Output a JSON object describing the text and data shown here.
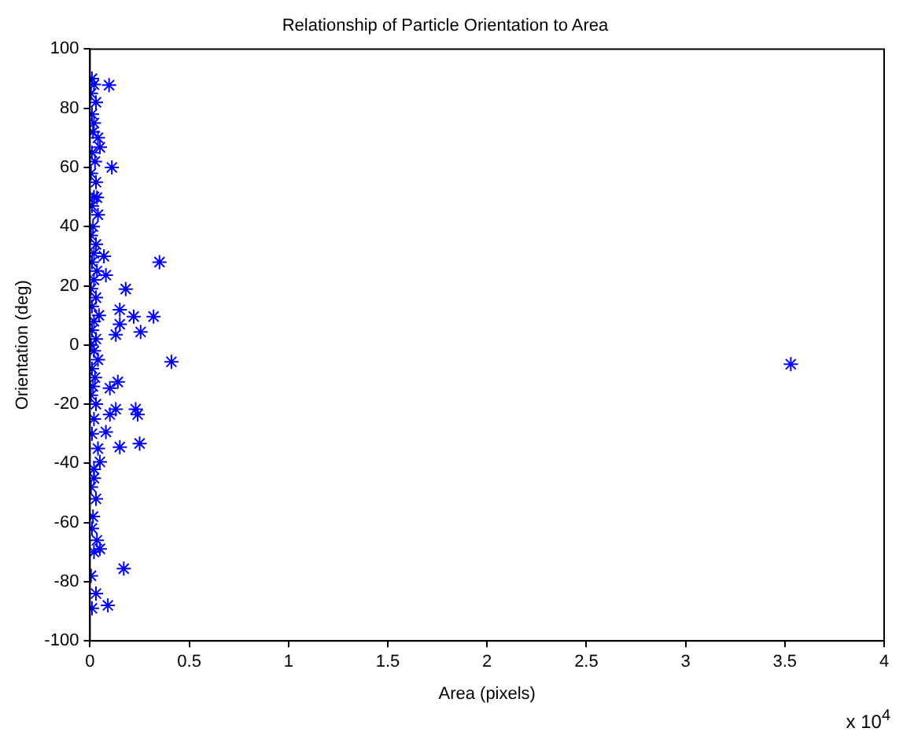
{
  "chart_data": {
    "type": "scatter",
    "title": "Relationship of Particle Orientation to Area",
    "xlabel": "Area (pixels)",
    "ylabel": "Orientation (deg)",
    "annotations": [
      "x 10$^{4}$"
    ],
    "xlim": [
      0,
      4
    ],
    "xticks": [
      0,
      0.5,
      1,
      1.5,
      2,
      2.5,
      3,
      3.5,
      4
    ],
    "ylim": [
      -100,
      100
    ],
    "yticks": [
      -100,
      -80,
      -60,
      -40,
      -20,
      0,
      20,
      40,
      60,
      80,
      100
    ],
    "grid": false,
    "legend": false,
    "marker": "cross",
    "series": [
      {
        "color": "#0000ff",
        "x": [
          0.096,
          0.05,
          0.11,
          0.035,
          0.07,
          0.35,
          0.08,
          0.18,
          0.15,
          0.22,
          0.32,
          0.255,
          0.15,
          0.13,
          0.41,
          0.14,
          0.1,
          0.13,
          0.23,
          0.1,
          0.24,
          0.08,
          0.15,
          0.25,
          0.05,
          0.05,
          0.17,
          0.09,
          3.53,
          0.01,
          0.02,
          0.005,
          0.03,
          0.01,
          0.02,
          0.015,
          0.04,
          0.01,
          0.025,
          0.005,
          0.03,
          0.02,
          0.01,
          0.04,
          0.015,
          0.005,
          0.03,
          0.02,
          0.01,
          0.035,
          0.02,
          0.005,
          0.03,
          0.01,
          0.045,
          0.02,
          0.01,
          0.03,
          0.005,
          0.02,
          0.04,
          0.01,
          0.025,
          0.015,
          0.005,
          0.03,
          0.02,
          0.01,
          0.04,
          0.02,
          0.005,
          0.03,
          0.015,
          0.01,
          0.035,
          0.02,
          0.005,
          0.03,
          0.01,
          0.02
        ],
        "values": [
          87.8,
          66.8,
          60,
          49.8,
          30,
          28,
          23.6,
          18.9,
          11.9,
          9.6,
          9.6,
          4.4,
          7,
          3.5,
          -5.7,
          -12.5,
          -14.6,
          -21.7,
          -21.7,
          -23.5,
          -23.5,
          -29.4,
          -34.5,
          -33.3,
          -39.5,
          -68.9,
          -75.6,
          -88,
          -6.5,
          90,
          88,
          85,
          82,
          78,
          75,
          72,
          70,
          65,
          62,
          58,
          55,
          50,
          47,
          44,
          40,
          37,
          34,
          31,
          28,
          25,
          22,
          19,
          16,
          13,
          10,
          8,
          5,
          2,
          0,
          -2,
          -5,
          -8,
          -11,
          -14,
          -17,
          -20,
          -25,
          -30,
          -35,
          -42,
          -48,
          -52,
          -58,
          -62,
          -66,
          -70,
          -78,
          -84,
          -89,
          -45
        ]
      }
    ]
  }
}
